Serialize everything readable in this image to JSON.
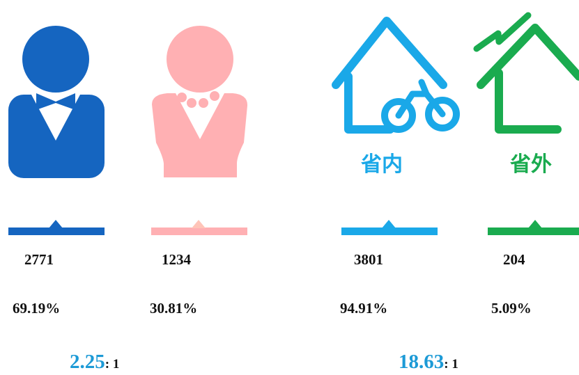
{
  "gender": [
    {
      "count": "2771",
      "percent": "69.19%"
    },
    {
      "count": "1234",
      "percent": "30.81%"
    }
  ],
  "province": [
    {
      "label": "省内",
      "count": "3801",
      "percent": "94.91%"
    },
    {
      "label": "省外",
      "count": "204",
      "percent": "5.09%"
    }
  ],
  "ratios": [
    {
      "value": "2.25",
      "suffix": ": 1"
    },
    {
      "value": "18.63",
      "suffix": ": 1"
    }
  ]
}
